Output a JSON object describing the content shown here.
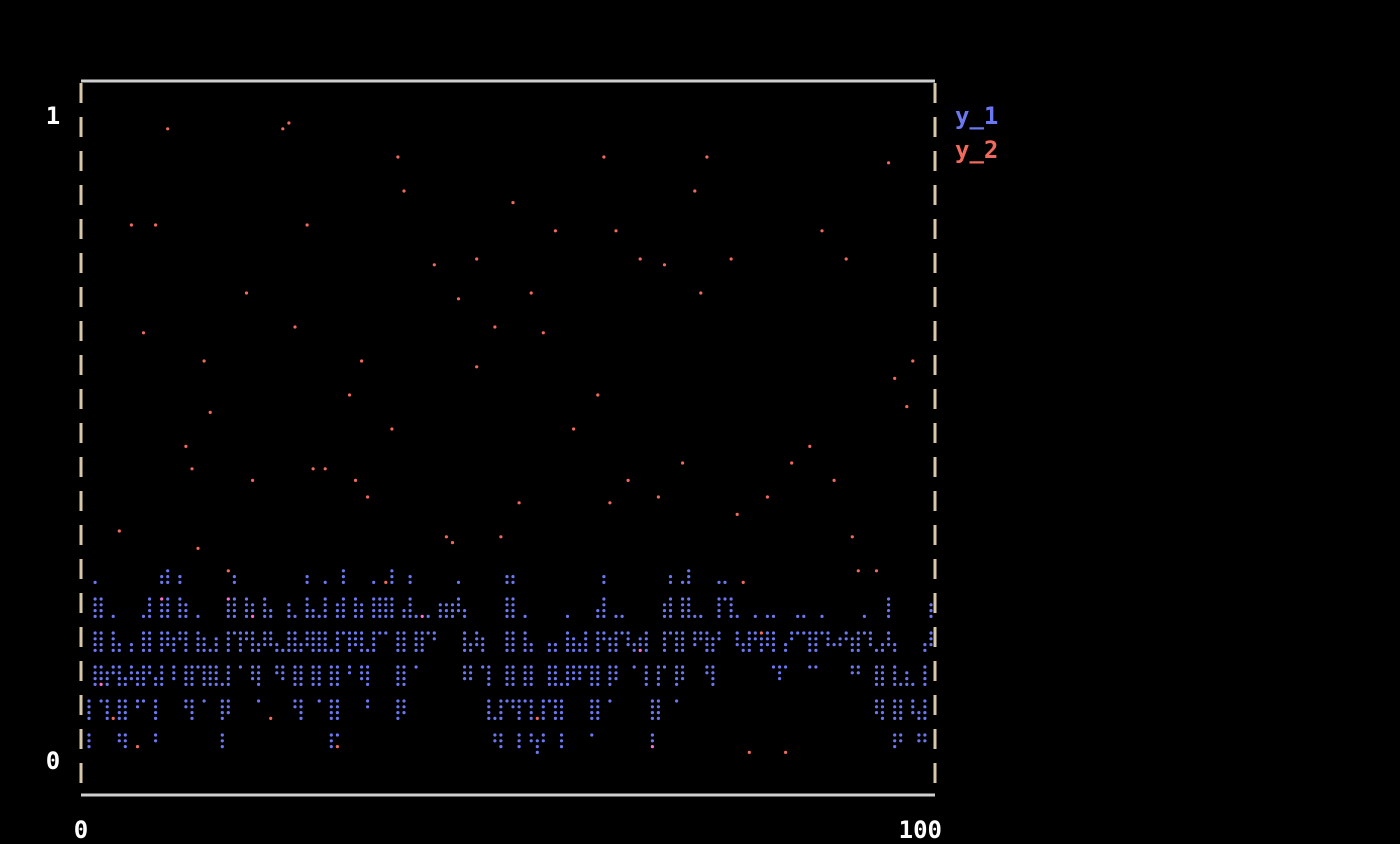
{
  "chart_data": {
    "type": "line+scatter",
    "title": "",
    "xlabel": "",
    "ylabel": "",
    "xlim": [
      0,
      100
    ],
    "ylim": [
      -0.05,
      1.05
    ],
    "x_ticks": [
      "0",
      "100"
    ],
    "y_ticks": [
      "0",
      "1"
    ],
    "grid": false,
    "legend": "right",
    "colors": {
      "y_1": "#6b78f0",
      "y_2": "#f26a5e",
      "overlap": "#ff6fd8",
      "frame": "#cfcfcf",
      "frame_side": "#d8c8a8",
      "text": "#ffffff"
    },
    "series": [
      {
        "name": "y_1",
        "type": "line",
        "x_start": 0,
        "x_step": 1,
        "values": [
          0.01,
          0.27,
          0.05,
          0.22,
          0.02,
          0.18,
          0.08,
          0.25,
          0.03,
          0.29,
          0.12,
          0.28,
          0.06,
          0.22,
          0.1,
          0.19,
          0.02,
          0.28,
          0.15,
          0.26,
          0.09,
          0.25,
          0.17,
          0.12,
          0.24,
          0.05,
          0.28,
          0.1,
          0.27,
          0.01,
          0.29,
          0.14,
          0.25,
          0.08,
          0.27,
          0.2,
          0.29,
          0.05,
          0.28,
          0.15,
          0.22,
          0.19,
          0.24,
          0.21,
          0.27,
          0.12,
          0.2,
          0.16,
          0.04,
          0.02,
          0.28,
          0.01,
          0.21,
          0.0,
          0.05,
          0.18,
          0.02,
          0.21,
          0.12,
          0.2,
          0.04,
          0.28,
          0.1,
          0.22,
          0.19,
          0.15,
          0.2,
          0.02,
          0.15,
          0.28,
          0.1,
          0.29,
          0.17,
          0.21,
          0.11,
          0.27,
          0.26,
          0.18,
          0.16,
          0.22,
          0.16,
          0.22,
          0.12,
          0.18,
          0.2,
          0.22,
          0.15,
          0.22,
          0.18,
          0.17,
          0.2,
          0.14,
          0.22,
          0.19,
          0.06,
          0.25,
          0.02,
          0.14,
          0.08,
          0.03,
          0.25
        ]
      },
      {
        "name": "y_2",
        "type": "scatter",
        "points": [
          [
            9.6,
            0.99
          ],
          [
            23.4,
            1.0
          ],
          [
            22.7,
            0.98
          ],
          [
            36.5,
            0.95
          ],
          [
            61.1,
            0.94
          ],
          [
            73.5,
            0.95
          ],
          [
            94.8,
            0.93
          ],
          [
            37.5,
            0.89
          ],
          [
            71.9,
            0.89
          ],
          [
            50.6,
            0.87
          ],
          [
            4.7,
            0.84
          ],
          [
            8.0,
            0.84
          ],
          [
            26.0,
            0.84
          ],
          [
            55.5,
            0.83
          ],
          [
            62.8,
            0.82
          ],
          [
            86.7,
            0.82
          ],
          [
            75.9,
            0.79
          ],
          [
            46.4,
            0.78
          ],
          [
            65.3,
            0.78
          ],
          [
            89.9,
            0.78
          ],
          [
            40.7,
            0.77
          ],
          [
            68.6,
            0.77
          ],
          [
            18.5,
            0.73
          ],
          [
            52.2,
            0.73
          ],
          [
            72.6,
            0.73
          ],
          [
            44.0,
            0.72
          ],
          [
            24.4,
            0.68
          ],
          [
            48.0,
            0.68
          ],
          [
            53.9,
            0.67
          ],
          [
            6.3,
            0.66
          ],
          [
            98.1,
            0.63
          ],
          [
            13.6,
            0.62
          ],
          [
            32.6,
            0.62
          ],
          [
            45.7,
            0.61
          ],
          [
            95.6,
            0.58
          ],
          [
            30.9,
            0.57
          ],
          [
            60.4,
            0.57
          ],
          [
            97.2,
            0.54
          ],
          [
            14.5,
            0.53
          ],
          [
            35.8,
            0.52
          ],
          [
            57.8,
            0.52
          ],
          [
            11.2,
            0.48
          ],
          [
            85.7,
            0.48
          ],
          [
            70.3,
            0.47
          ],
          [
            83.4,
            0.47
          ],
          [
            11.9,
            0.46
          ],
          [
            26.7,
            0.46
          ],
          [
            28.3,
            0.46
          ],
          [
            63.7,
            0.43
          ],
          [
            88.3,
            0.43
          ],
          [
            19.4,
            0.43
          ],
          [
            31.6,
            0.43
          ],
          [
            33.3,
            0.42
          ],
          [
            80.8,
            0.42
          ],
          [
            67.7,
            0.41
          ],
          [
            51.3,
            0.4
          ],
          [
            62.1,
            0.4
          ],
          [
            3.7,
            0.36
          ],
          [
            76.8,
            0.37
          ],
          [
            42.4,
            0.35
          ],
          [
            48.9,
            0.35
          ],
          [
            90.6,
            0.35
          ],
          [
            43.1,
            0.33
          ],
          [
            12.9,
            0.32
          ],
          [
            16.9,
            0.3
          ],
          [
            91.6,
            0.3
          ],
          [
            93.2,
            0.3
          ],
          [
            77.5,
            0.27
          ],
          [
            16.2,
            0.26
          ],
          [
            80.1,
            0.2
          ],
          [
            21.8,
            0.06
          ],
          [
            3.0,
            0.05
          ],
          [
            67.0,
            0.01
          ],
          [
            78.5,
            0.0
          ],
          [
            82.4,
            0.0
          ],
          [
            8.7,
            0.26
          ],
          [
            35.0,
            0.27
          ],
          [
            39.5,
            0.21
          ],
          [
            19.2,
            0.21
          ],
          [
            65.8,
            0.16
          ],
          [
            1.6,
            0.11
          ],
          [
            53.5,
            0.06
          ],
          [
            29.5,
            0.02
          ],
          [
            5.5,
            0.01
          ]
        ]
      }
    ]
  }
}
